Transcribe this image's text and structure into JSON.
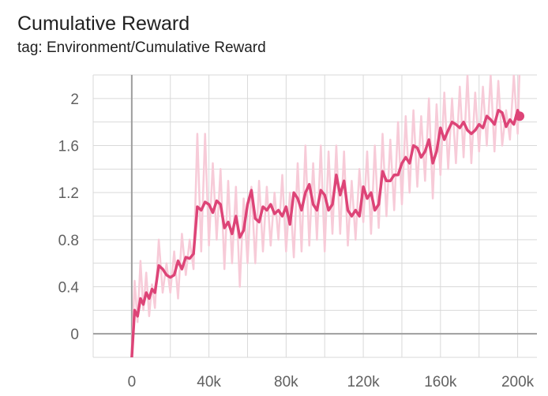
{
  "card": {
    "title": "Cumulative Reward",
    "subtitle": "tag: Environment/Cumulative Reward"
  },
  "colors": {
    "line": "#dd4477",
    "raw": "#f7cbd8",
    "grid": "#d9d9d9",
    "axis": "#9e9e9e"
  },
  "chart_data": {
    "type": "line",
    "title": "Cumulative Reward",
    "subtitle": "tag: Environment/Cumulative Reward",
    "xlabel": "",
    "ylabel": "",
    "xlim": [
      -20000,
      210000
    ],
    "ylim": [
      -0.2,
      2.2
    ],
    "grid": true,
    "x_ticks": [
      0,
      40000,
      80000,
      120000,
      160000,
      200000
    ],
    "x_tick_labels": [
      "0",
      "40k",
      "80k",
      "120k",
      "160k",
      "200k"
    ],
    "y_ticks": [
      0,
      0.4,
      0.8,
      1.2,
      1.6,
      2
    ],
    "y_tick_labels": [
      "0",
      "0.4",
      "0.8",
      "1.2",
      "1.6",
      "2"
    ],
    "series": [
      {
        "kind": "smoothed",
        "x": [
          0,
          1500,
          3000,
          4500,
          6000,
          7500,
          9000,
          10500,
          12000,
          14000,
          16000,
          18000,
          20000,
          22000,
          24000,
          26000,
          28000,
          30000,
          32000,
          34000,
          36000,
          38000,
          40000,
          42000,
          44000,
          46000,
          48000,
          50000,
          52000,
          54000,
          56000,
          58000,
          60000,
          62000,
          64000,
          66000,
          68000,
          70000,
          72000,
          74000,
          76000,
          78000,
          80000,
          82000,
          84000,
          86000,
          88000,
          90000,
          92000,
          94000,
          96000,
          98000,
          100000,
          102000,
          104000,
          106000,
          108000,
          110000,
          112000,
          114000,
          116000,
          118000,
          120000,
          122000,
          124000,
          126000,
          128000,
          130000,
          132000,
          134000,
          136000,
          138000,
          140000,
          142000,
          144000,
          146000,
          148000,
          150000,
          152000,
          154000,
          156000,
          158000,
          160000,
          162000,
          164000,
          166000,
          168000,
          170000,
          172000,
          174000,
          176000,
          178000,
          180000,
          182000,
          184000,
          186000,
          188000,
          190000,
          192000,
          194000,
          196000,
          198000,
          200000,
          201000
        ],
        "y": [
          -0.2,
          0.2,
          0.15,
          0.3,
          0.25,
          0.35,
          0.3,
          0.38,
          0.35,
          0.58,
          0.55,
          0.5,
          0.48,
          0.5,
          0.62,
          0.55,
          0.65,
          0.64,
          0.68,
          1.08,
          1.05,
          1.12,
          1.1,
          1.03,
          1.13,
          1.1,
          0.9,
          0.95,
          0.85,
          1.0,
          0.82,
          0.88,
          1.1,
          1.22,
          0.98,
          0.95,
          1.08,
          1.05,
          1.1,
          1.02,
          1.05,
          1.0,
          1.08,
          0.93,
          1.2,
          1.15,
          1.05,
          1.2,
          1.27,
          1.1,
          1.05,
          1.22,
          1.18,
          1.05,
          1.1,
          1.35,
          1.18,
          1.3,
          1.05,
          1.0,
          1.05,
          1.0,
          1.25,
          1.15,
          1.2,
          1.05,
          1.1,
          1.38,
          1.3,
          1.3,
          1.35,
          1.35,
          1.45,
          1.5,
          1.45,
          1.6,
          1.58,
          1.5,
          1.55,
          1.65,
          1.45,
          1.55,
          1.75,
          1.65,
          1.73,
          1.8,
          1.78,
          1.75,
          1.8,
          1.73,
          1.7,
          1.73,
          1.78,
          1.75,
          1.85,
          1.82,
          1.78,
          1.9,
          1.88,
          1.76,
          1.82,
          1.78,
          1.9,
          1.85
        ]
      },
      {
        "kind": "raw",
        "x": [
          0,
          1500,
          3000,
          4500,
          6000,
          7500,
          9000,
          10500,
          12000,
          14000,
          16000,
          18000,
          20000,
          22000,
          24000,
          26000,
          28000,
          30000,
          32000,
          34000,
          36000,
          38000,
          40000,
          42000,
          44000,
          46000,
          48000,
          50000,
          52000,
          54000,
          56000,
          58000,
          60000,
          62000,
          64000,
          66000,
          68000,
          70000,
          72000,
          74000,
          76000,
          78000,
          80000,
          82000,
          84000,
          86000,
          88000,
          90000,
          92000,
          94000,
          96000,
          98000,
          100000,
          102000,
          104000,
          106000,
          108000,
          110000,
          112000,
          114000,
          116000,
          118000,
          120000,
          122000,
          124000,
          126000,
          128000,
          130000,
          132000,
          134000,
          136000,
          138000,
          140000,
          142000,
          144000,
          146000,
          148000,
          150000,
          152000,
          154000,
          156000,
          158000,
          160000,
          162000,
          164000,
          166000,
          168000,
          170000,
          172000,
          174000,
          176000,
          178000,
          180000,
          182000,
          184000,
          186000,
          188000,
          190000,
          192000,
          194000,
          196000,
          198000,
          200000,
          201000
        ],
        "y": [
          -0.15,
          0.45,
          0.1,
          0.62,
          0.2,
          0.52,
          0.15,
          0.42,
          0.22,
          0.8,
          0.35,
          0.6,
          0.35,
          0.7,
          0.3,
          0.85,
          0.5,
          0.8,
          0.55,
          1.7,
          0.7,
          1.7,
          0.75,
          1.45,
          0.8,
          1.4,
          0.55,
          1.3,
          0.6,
          1.25,
          0.4,
          1.15,
          0.6,
          1.25,
          0.6,
          1.3,
          0.7,
          1.25,
          0.75,
          1.2,
          0.8,
          1.35,
          0.7,
          1.2,
          0.65,
          1.45,
          0.7,
          1.6,
          0.75,
          1.45,
          0.8,
          1.6,
          0.7,
          1.55,
          0.85,
          1.6,
          0.85,
          1.55,
          0.75,
          1.3,
          0.8,
          1.4,
          0.95,
          1.55,
          0.85,
          1.6,
          0.9,
          1.7,
          1.0,
          1.65,
          1.05,
          1.8,
          1.1,
          1.85,
          1.2,
          1.9,
          1.25,
          1.85,
          1.3,
          2.0,
          1.15,
          1.95,
          1.35,
          2.05,
          1.4,
          2.0,
          1.45,
          2.1,
          1.5,
          2.2,
          1.45,
          2.05,
          1.55,
          2.1,
          1.6,
          2.2,
          1.55,
          2.15,
          1.6,
          1.9,
          1.65,
          2.2,
          1.7,
          2.25
        ]
      }
    ]
  }
}
